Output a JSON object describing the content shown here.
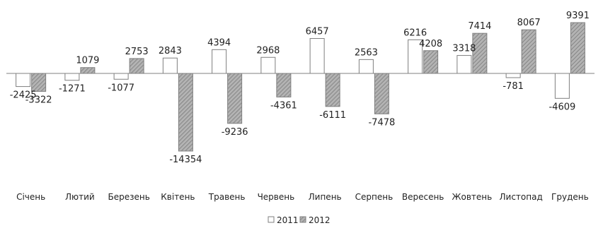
{
  "chart_data": {
    "type": "bar",
    "title": "",
    "xlabel": "",
    "ylabel": "",
    "categories": [
      "Січень",
      "Лютий",
      "Березень",
      "Квітень",
      "Травень",
      "Червень",
      "Липень",
      "Серпень",
      "Вересень",
      "Жовтень",
      "Листопад",
      "Грудень"
    ],
    "series": [
      {
        "name": "2011",
        "values": [
          -2425,
          -1271,
          -1077,
          2843,
          4394,
          2968,
          6457,
          2563,
          6216,
          3318,
          -781,
          -4609
        ],
        "value_labels": [
          "-2425",
          "-1271",
          "-1077",
          "2843",
          "4394",
          "2968",
          "6457",
          "2563",
          "6216",
          "3318",
          "-781",
          "-4609"
        ]
      },
      {
        "name": "2012",
        "values": [
          -3322,
          1079,
          2753,
          -14354,
          -9236,
          -4361,
          -6111,
          -7478,
          4208,
          7414,
          8067,
          9391
        ],
        "value_labels": [
          "-3322",
          "1079",
          "2753",
          "-14354",
          "-9236",
          "-4361",
          "-6111",
          "-7478",
          "4208",
          "7414",
          "8067",
          "9391"
        ]
      }
    ],
    "ylim": [
      -14354,
      9391
    ],
    "grid": false,
    "legend_position": "bottom",
    "colors": {
      "2011": "#ffffff",
      "2012": "#a6a6a6",
      "outline": "#7f7f7f",
      "axis": "#808080"
    }
  }
}
